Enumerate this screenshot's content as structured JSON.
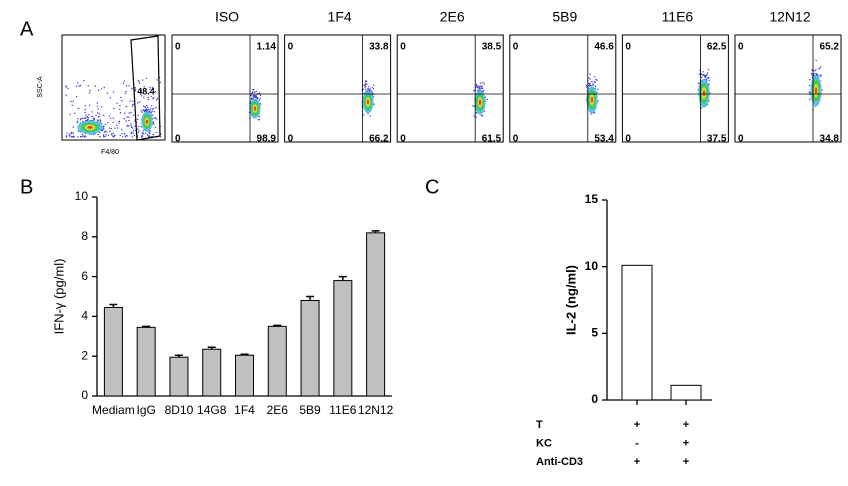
{
  "panel_a": {
    "label": "A",
    "gate_plot": {
      "y_label": "SSC-A",
      "x_label": "F4/80",
      "gate_value": 48.4
    },
    "plots": [
      {
        "title": "ISO",
        "top_left": 0,
        "top_right": 1.14,
        "bottom_left": 0,
        "bottom_right": 98.9
      },
      {
        "title": "1F4",
        "top_left": 0,
        "top_right": 33.8,
        "bottom_left": 0,
        "bottom_right": 66.2
      },
      {
        "title": "2E6",
        "top_left": 0,
        "top_right": 38.5,
        "bottom_left": 0,
        "bottom_right": 61.5
      },
      {
        "title": "5B9",
        "top_left": 0,
        "top_right": 46.6,
        "bottom_left": 0,
        "bottom_right": 53.4
      },
      {
        "title": "11E6",
        "top_left": 0,
        "top_right": 62.5,
        "bottom_left": 0,
        "bottom_right": 37.5
      },
      {
        "title": "12N12",
        "top_left": 0,
        "top_right": 65.2,
        "bottom_left": 0,
        "bottom_right": 34.8
      }
    ]
  },
  "chart_data": [
    {
      "type": "bar",
      "panel_label": "B",
      "y_label": "IFN-γ (pg/ml)",
      "categories": [
        "Mediam",
        "IgG",
        "8D10",
        "14G8",
        "1F4",
        "2E6",
        "5B9",
        "11E6",
        "12N12"
      ],
      "values": [
        4.45,
        3.45,
        1.95,
        2.35,
        2.05,
        3.5,
        4.8,
        5.8,
        8.2
      ],
      "errors": [
        0.15,
        0.05,
        0.1,
        0.1,
        0.05,
        0.05,
        0.2,
        0.2,
        0.1
      ],
      "color": "#c0c0c0",
      "ylim": [
        0,
        10
      ],
      "yticks": [
        0,
        2,
        4,
        6,
        8,
        10
      ],
      "grid": false
    },
    {
      "type": "bar",
      "panel_label": "C",
      "y_label": "IL-2 (ng/ml)",
      "values": [
        10.1,
        1.1
      ],
      "color": "#ffffff",
      "ylim": [
        0,
        15
      ],
      "yticks": [
        0,
        5,
        10,
        15
      ],
      "grid": false,
      "conditions": [
        {
          "label": "T",
          "values": [
            "+",
            "+"
          ]
        },
        {
          "label": "KC",
          "values": [
            "-",
            "+"
          ]
        },
        {
          "label": "Anti-CD3",
          "values": [
            "+",
            "+"
          ]
        }
      ]
    }
  ]
}
